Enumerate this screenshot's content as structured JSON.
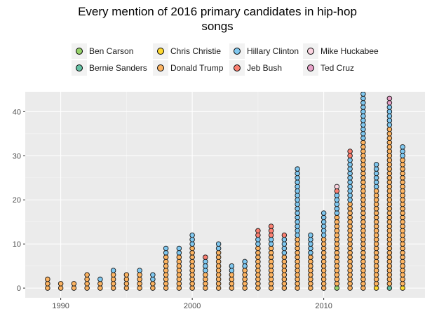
{
  "chart_data": {
    "type": "dot",
    "title": "Every mention of 2016 primary candidates in hip-hop songs",
    "xlabel": "",
    "ylabel": "",
    "xlim": [
      1987.3,
      2017.7
    ],
    "ylim": [
      -2.2,
      44.5
    ],
    "x_ticks": [
      1990,
      2000,
      2010
    ],
    "y_ticks": [
      0,
      10,
      20,
      30,
      40
    ],
    "grid": true,
    "legend_position": "top",
    "colors": {
      "Ben Carson": "#97d36b",
      "Bernie Sanders": "#66c2a5",
      "Chris Christie": "#ffd92f",
      "Donald Trump": "#fdb462",
      "Hillary Clinton": "#80c8f0",
      "Jeb Bush": "#fb8072",
      "Mike Huckabee": "#fbd3e0",
      "Ted Cruz": "#e7a1c8"
    },
    "candidates": [
      "Ben Carson",
      "Bernie Sanders",
      "Chris Christie",
      "Donald Trump",
      "Hillary Clinton",
      "Jeb Bush",
      "Mike Huckabee",
      "Ted Cruz"
    ],
    "mentions": [
      {
        "year": 1989,
        "counts": {
          "Donald Trump": 3
        }
      },
      {
        "year": 1990,
        "counts": {
          "Donald Trump": 2
        }
      },
      {
        "year": 1991,
        "counts": {
          "Donald Trump": 2
        }
      },
      {
        "year": 1992,
        "counts": {
          "Donald Trump": 4
        }
      },
      {
        "year": 1993,
        "counts": {
          "Donald Trump": 2,
          "Hillary Clinton": 1
        }
      },
      {
        "year": 1994,
        "counts": {
          "Donald Trump": 4,
          "Hillary Clinton": 1
        }
      },
      {
        "year": 1995,
        "counts": {
          "Donald Trump": 4
        }
      },
      {
        "year": 1996,
        "counts": {
          "Donald Trump": 4,
          "Hillary Clinton": 1
        }
      },
      {
        "year": 1997,
        "counts": {
          "Donald Trump": 2,
          "Hillary Clinton": 2
        }
      },
      {
        "year": 1998,
        "counts": {
          "Donald Trump": 8,
          "Hillary Clinton": 2
        }
      },
      {
        "year": 1999,
        "counts": {
          "Donald Trump": 8,
          "Hillary Clinton": 2
        }
      },
      {
        "year": 2000,
        "counts": {
          "Donald Trump": 10,
          "Hillary Clinton": 3
        }
      },
      {
        "year": 2001,
        "counts": {
          "Donald Trump": 4,
          "Hillary Clinton": 3,
          "Jeb Bush": 1
        }
      },
      {
        "year": 2002,
        "counts": {
          "Donald Trump": 9,
          "Hillary Clinton": 2
        }
      },
      {
        "year": 2003,
        "counts": {
          "Donald Trump": 4,
          "Hillary Clinton": 2
        }
      },
      {
        "year": 2004,
        "counts": {
          "Donald Trump": 5,
          "Hillary Clinton": 2
        }
      },
      {
        "year": 2005,
        "counts": {
          "Donald Trump": 10,
          "Hillary Clinton": 2,
          "Jeb Bush": 2
        }
      },
      {
        "year": 2006,
        "counts": {
          "Donald Trump": 10,
          "Hillary Clinton": 2,
          "Jeb Bush": 3
        }
      },
      {
        "year": 2007,
        "counts": {
          "Donald Trump": 8,
          "Hillary Clinton": 4,
          "Jeb Bush": 1
        }
      },
      {
        "year": 2008,
        "counts": {
          "Donald Trump": 12,
          "Hillary Clinton": 16
        }
      },
      {
        "year": 2009,
        "counts": {
          "Donald Trump": 8,
          "Hillary Clinton": 5
        }
      },
      {
        "year": 2010,
        "counts": {
          "Donald Trump": 12,
          "Hillary Clinton": 6
        }
      },
      {
        "year": 2011,
        "counts": {
          "Ben Carson": 1,
          "Donald Trump": 16,
          "Hillary Clinton": 5,
          "Jeb Bush": 1,
          "Mike Huckabee": 1
        }
      },
      {
        "year": 2012,
        "counts": {
          "Donald Trump": 20,
          "Hillary Clinton": 10,
          "Jeb Bush": 2
        }
      },
      {
        "year": 2013,
        "counts": {
          "Donald Trump": 34,
          "Hillary Clinton": 11,
          "Jeb Bush": 1
        }
      },
      {
        "year": 2014,
        "counts": {
          "Chris Christie": 1,
          "Donald Trump": 22,
          "Hillary Clinton": 6
        }
      },
      {
        "year": 2015,
        "counts": {
          "Bernie Sanders": 1,
          "Donald Trump": 36,
          "Hillary Clinton": 5,
          "Ted Cruz": 2
        }
      },
      {
        "year": 2016,
        "counts": {
          "Chris Christie": 1,
          "Donald Trump": 29,
          "Hillary Clinton": 3
        }
      }
    ]
  }
}
